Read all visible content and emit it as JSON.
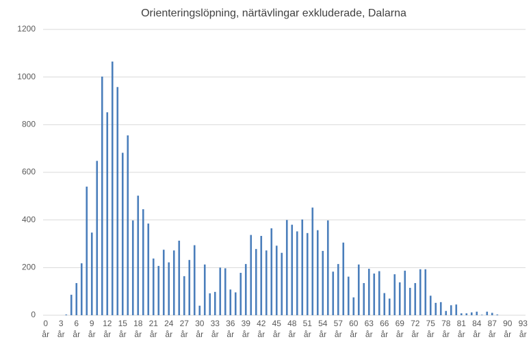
{
  "chart_data": {
    "type": "bar",
    "title": "Orienteringslöpning, närtävlingar exkluderade, Dalarna",
    "categories": [
      "0 år",
      null,
      null,
      "3 år",
      null,
      null,
      "6 år",
      null,
      null,
      "9 år",
      null,
      null,
      "12 år",
      null,
      null,
      "15 år",
      null,
      null,
      "18 år",
      null,
      null,
      "21 år",
      null,
      null,
      "24 år",
      null,
      null,
      "27 år",
      null,
      null,
      "30 år",
      null,
      null,
      "33 år",
      null,
      null,
      "36 år",
      null,
      null,
      "39 år",
      null,
      null,
      "42 år",
      null,
      null,
      "45 år",
      null,
      null,
      "48 år",
      null,
      null,
      "51 år",
      null,
      null,
      "54 år",
      null,
      null,
      "57 år",
      null,
      null,
      "60 år",
      null,
      null,
      "63 år",
      null,
      null,
      "66 år",
      null,
      null,
      "69 år",
      null,
      null,
      "72 år",
      null,
      null,
      "75 år",
      null,
      null,
      "78 år",
      null,
      null,
      "81 år",
      null,
      null,
      "84 år",
      null,
      null,
      "87 år",
      null,
      null,
      "90 år",
      null,
      null,
      "93 år"
    ],
    "values": [
      0,
      0,
      0,
      0,
      3,
      86,
      135,
      218,
      540,
      347,
      648,
      1002,
      852,
      1065,
      958,
      682,
      755,
      398,
      502,
      445,
      385,
      238,
      207,
      275,
      222,
      272,
      313,
      164,
      232,
      294,
      40,
      213,
      92,
      98,
      200,
      197,
      108,
      96,
      178,
      215,
      337,
      278,
      333,
      272,
      365,
      292,
      262,
      400,
      380,
      352,
      402,
      345,
      452,
      357,
      270,
      398,
      183,
      215,
      305,
      162,
      75,
      213,
      135,
      195,
      175,
      185,
      93,
      70,
      172,
      138,
      187,
      115,
      135,
      193,
      193,
      82,
      52,
      55,
      18,
      42,
      45,
      8,
      8,
      12,
      15,
      2,
      15,
      10,
      3,
      0,
      0,
      0,
      0,
      0
    ],
    "color": "#4a7ebb",
    "ylim": [
      0,
      1200
    ],
    "yticks": [
      0,
      200,
      400,
      600,
      800,
      1000,
      1200
    ],
    "grid": true
  }
}
